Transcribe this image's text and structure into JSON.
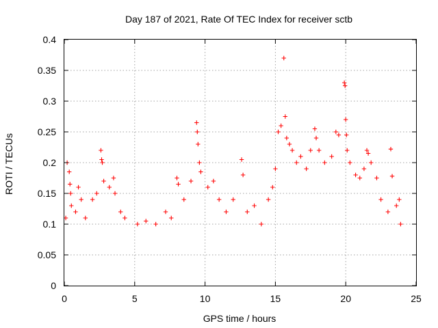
{
  "chart_data": {
    "type": "scatter",
    "title": "Day 187 of 2021, Rate Of TEC Index for receiver sctb",
    "xlabel": "GPS time / hours",
    "ylabel": "ROTI / TECUs",
    "xlim": [
      0,
      25
    ],
    "ylim": [
      0,
      0.4
    ],
    "x_ticks": [
      0,
      5,
      10,
      15,
      20,
      25
    ],
    "y_ticks": [
      0,
      0.05,
      0.1,
      0.15,
      0.2,
      0.25,
      0.3,
      0.35,
      0.4
    ],
    "x_tick_labels": [
      "0",
      "5",
      "10",
      "15",
      "20",
      "25"
    ],
    "y_tick_labels": [
      "0",
      "0.05",
      "0.1",
      "0.15",
      "0.2",
      "0.25",
      "0.3",
      "0.35",
      "0.4"
    ],
    "grid": true,
    "marker": "plus",
    "marker_color": "#ff0000",
    "series": [
      {
        "points": [
          [
            0.1,
            0.11
          ],
          [
            0.2,
            0.2
          ],
          [
            0.35,
            0.185
          ],
          [
            0.4,
            0.165
          ],
          [
            0.45,
            0.15
          ],
          [
            0.5,
            0.13
          ],
          [
            0.8,
            0.12
          ],
          [
            1.0,
            0.16
          ],
          [
            1.2,
            0.14
          ],
          [
            1.5,
            0.11
          ],
          [
            2.0,
            0.14
          ],
          [
            2.3,
            0.15
          ],
          [
            2.6,
            0.22
          ],
          [
            2.65,
            0.205
          ],
          [
            2.7,
            0.2
          ],
          [
            2.8,
            0.17
          ],
          [
            3.2,
            0.16
          ],
          [
            3.5,
            0.175
          ],
          [
            3.6,
            0.15
          ],
          [
            4.0,
            0.12
          ],
          [
            4.3,
            0.11
          ],
          [
            5.2,
            0.1
          ],
          [
            5.8,
            0.105
          ],
          [
            6.5,
            0.1
          ],
          [
            7.2,
            0.12
          ],
          [
            7.6,
            0.11
          ],
          [
            8.0,
            0.175
          ],
          [
            8.1,
            0.165
          ],
          [
            8.5,
            0.14
          ],
          [
            9.0,
            0.17
          ],
          [
            9.4,
            0.265
          ],
          [
            9.45,
            0.25
          ],
          [
            9.5,
            0.23
          ],
          [
            9.6,
            0.2
          ],
          [
            9.7,
            0.185
          ],
          [
            10.2,
            0.16
          ],
          [
            10.6,
            0.17
          ],
          [
            11.0,
            0.14
          ],
          [
            11.5,
            0.12
          ],
          [
            12.0,
            0.14
          ],
          [
            12.6,
            0.205
          ],
          [
            12.7,
            0.18
          ],
          [
            13.0,
            0.12
          ],
          [
            13.5,
            0.13
          ],
          [
            14.0,
            0.1
          ],
          [
            14.5,
            0.14
          ],
          [
            14.8,
            0.16
          ],
          [
            15.0,
            0.19
          ],
          [
            15.2,
            0.25
          ],
          [
            15.4,
            0.26
          ],
          [
            15.6,
            0.37
          ],
          [
            15.7,
            0.275
          ],
          [
            15.8,
            0.24
          ],
          [
            16.0,
            0.23
          ],
          [
            16.2,
            0.22
          ],
          [
            16.5,
            0.2
          ],
          [
            16.8,
            0.21
          ],
          [
            17.2,
            0.19
          ],
          [
            17.5,
            0.22
          ],
          [
            17.8,
            0.255
          ],
          [
            17.9,
            0.24
          ],
          [
            18.1,
            0.22
          ],
          [
            18.5,
            0.2
          ],
          [
            19.0,
            0.21
          ],
          [
            19.3,
            0.25
          ],
          [
            19.5,
            0.245
          ],
          [
            19.9,
            0.33
          ],
          [
            19.95,
            0.325
          ],
          [
            20.0,
            0.27
          ],
          [
            20.05,
            0.245
          ],
          [
            20.1,
            0.22
          ],
          [
            20.3,
            0.2
          ],
          [
            20.7,
            0.18
          ],
          [
            21.0,
            0.175
          ],
          [
            21.3,
            0.19
          ],
          [
            21.5,
            0.22
          ],
          [
            21.6,
            0.215
          ],
          [
            21.8,
            0.2
          ],
          [
            22.2,
            0.175
          ],
          [
            22.5,
            0.14
          ],
          [
            23.0,
            0.12
          ],
          [
            23.2,
            0.222
          ],
          [
            23.3,
            0.178
          ],
          [
            23.6,
            0.13
          ],
          [
            23.8,
            0.14
          ],
          [
            23.9,
            0.1
          ]
        ]
      }
    ]
  }
}
